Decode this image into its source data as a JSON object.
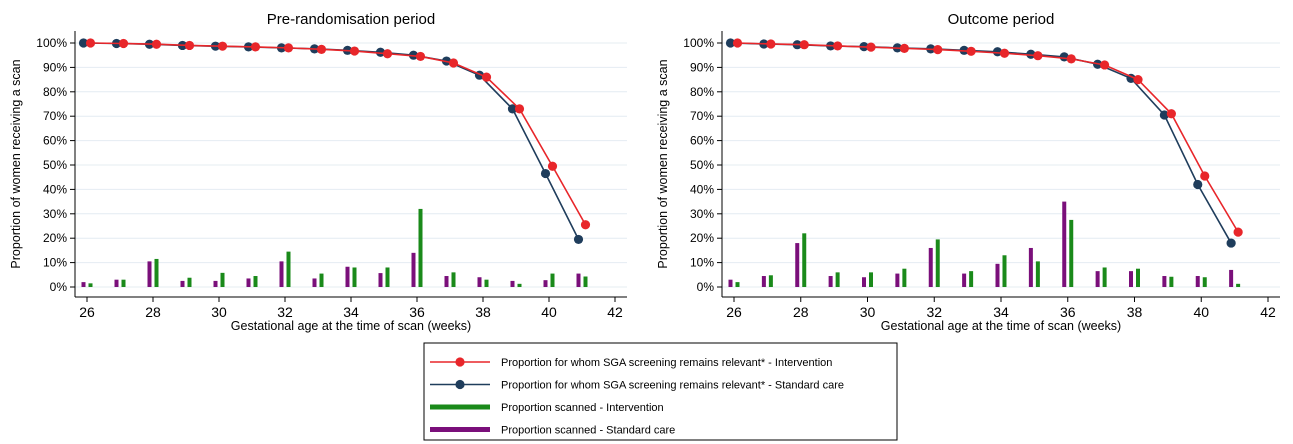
{
  "colors": {
    "intervention_line": "#e8262a",
    "standard_line": "#1f3d5c",
    "intervention_bar": "#1a8a1a",
    "standard_bar": "#7a0f7a",
    "grid": "#e4ecf2"
  },
  "legend": {
    "items": [
      {
        "label": "Proportion for whom SGA screening remains relevant* - Intervention",
        "kind": "line-marker",
        "color_key": "intervention_line"
      },
      {
        "label": "Proportion for whom SGA screening remains relevant* - Standard care",
        "kind": "line-marker",
        "color_key": "standard_line"
      },
      {
        "label": "Proportion scanned - Intervention",
        "kind": "bar",
        "color_key": "intervention_bar"
      },
      {
        "label": "Proportion scanned - Standard care",
        "kind": "bar",
        "color_key": "standard_bar"
      }
    ]
  },
  "chart_data": [
    {
      "type": "line",
      "title": "Pre-randomisation period",
      "xlabel": "Gestational age at the time of scan (weeks)",
      "ylabel": "Proportion of women receiving a scan",
      "xlim": [
        26,
        42
      ],
      "ylim": [
        0,
        100
      ],
      "x_ticks": [
        26,
        28,
        30,
        32,
        34,
        36,
        38,
        40,
        42
      ],
      "y_ticks": [
        0,
        10,
        20,
        30,
        40,
        50,
        60,
        70,
        80,
        90,
        100
      ],
      "y_tick_labels": [
        "0%",
        "10%",
        "20%",
        "30%",
        "40%",
        "50%",
        "60%",
        "70%",
        "80%",
        "90%",
        "100%"
      ],
      "grid": true,
      "x": [
        26,
        27,
        28,
        29,
        30,
        31,
        32,
        33,
        34,
        35,
        36,
        37,
        38,
        39,
        40,
        41
      ],
      "lines": [
        {
          "name": "Proportion for whom SGA screening remains relevant* - Intervention",
          "color_key": "intervention_line",
          "values": [
            100,
            99.8,
            99.5,
            99,
            98.7,
            98.4,
            98,
            97.4,
            96.7,
            95.6,
            94.5,
            91.8,
            86,
            73,
            49.5,
            25.5
          ]
        },
        {
          "name": "Proportion for whom SGA screening remains relevant* - Standard care",
          "color_key": "standard_line",
          "values": [
            100,
            99.8,
            99.5,
            99,
            98.7,
            98.4,
            98,
            97.6,
            97,
            96.2,
            95,
            92.6,
            86.8,
            73,
            46.5,
            19.5
          ]
        }
      ],
      "bars": [
        {
          "name": "Proportion scanned - Standard care",
          "color_key": "standard_bar",
          "values": [
            2,
            3,
            10.5,
            2.5,
            2.5,
            3.5,
            10.5,
            3.5,
            8.3,
            5.7,
            14,
            4.5,
            4,
            2.5,
            2.8,
            5.5
          ]
        },
        {
          "name": "Proportion scanned - Intervention",
          "color_key": "intervention_bar",
          "values": [
            1.5,
            3,
            11.5,
            3.8,
            5.8,
            4.5,
            14.5,
            5.5,
            8,
            8,
            32,
            6,
            3,
            1.3,
            5.5,
            4.3
          ]
        }
      ]
    },
    {
      "type": "line",
      "title": "Outcome period",
      "xlabel": "Gestational age at the time of scan (weeks)",
      "ylabel": "Proportion of women receiving a scan",
      "xlim": [
        26,
        42
      ],
      "ylim": [
        0,
        100
      ],
      "x_ticks": [
        26,
        28,
        30,
        32,
        34,
        36,
        38,
        40,
        42
      ],
      "y_ticks": [
        0,
        10,
        20,
        30,
        40,
        50,
        60,
        70,
        80,
        90,
        100
      ],
      "y_tick_labels": [
        "0%",
        "10%",
        "20%",
        "30%",
        "40%",
        "50%",
        "60%",
        "70%",
        "80%",
        "90%",
        "100%"
      ],
      "grid": true,
      "x": [
        26,
        27,
        28,
        29,
        30,
        31,
        32,
        33,
        34,
        35,
        36,
        37,
        38,
        39,
        40,
        41
      ],
      "lines": [
        {
          "name": "Proportion for whom SGA screening remains relevant* - Intervention",
          "color_key": "intervention_line",
          "values": [
            100,
            99.6,
            99.3,
            98.8,
            98.3,
            97.8,
            97.3,
            96.6,
            95.8,
            94.8,
            93.5,
            91,
            85,
            71,
            45.5,
            22.5
          ]
        },
        {
          "name": "Proportion for whom SGA screening remains relevant* - Standard care",
          "color_key": "standard_line",
          "values": [
            100,
            99.6,
            99.3,
            98.8,
            98.5,
            98,
            97.6,
            97,
            96.4,
            95.4,
            94.3,
            91.3,
            85.5,
            70.5,
            42,
            18
          ]
        }
      ],
      "bars": [
        {
          "name": "Proportion scanned - Standard care",
          "color_key": "standard_bar",
          "values": [
            3,
            4.5,
            18,
            4.5,
            4,
            5.5,
            16,
            5.5,
            9.5,
            16,
            35,
            6.5,
            6.5,
            4.5,
            4.5,
            7
          ]
        },
        {
          "name": "Proportion scanned - Intervention",
          "color_key": "intervention_bar",
          "values": [
            2,
            4.8,
            22,
            6,
            6,
            7.5,
            19.5,
            6.5,
            13,
            10.5,
            27.5,
            8,
            7.5,
            4.2,
            4,
            1.3
          ]
        }
      ]
    }
  ]
}
